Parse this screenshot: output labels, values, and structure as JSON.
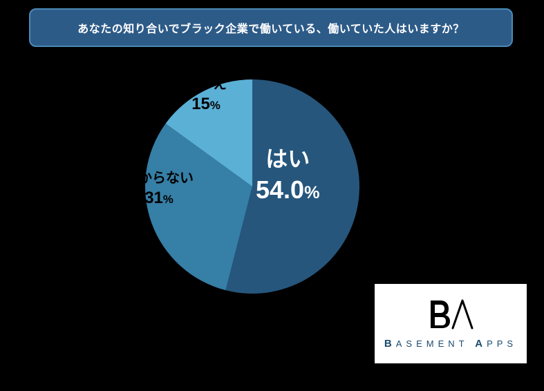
{
  "title": "あなたの知り合いでブラック企業で働いている、働いていた人はいますか？",
  "title_box": {
    "background": "#2d5b88",
    "border_color": "#4a8ab8",
    "text_color": "#ffffff",
    "fontsize": 16
  },
  "chart": {
    "type": "pie",
    "start_angle_deg": -90,
    "radius": 155,
    "background": "#000000",
    "slices": [
      {
        "label": "はい",
        "value": 54.0,
        "pct_display": "54.0",
        "color": "#26567c",
        "label_color": "#ffffff",
        "name_fontsize": 32,
        "pct_fontsize": 36
      },
      {
        "label": "わからない",
        "value": 31.0,
        "pct_display": "31",
        "color": "#367fa6",
        "label_color": "#000000",
        "name_fontsize": 20,
        "pct_fontsize": 24
      },
      {
        "label": "いいえ",
        "value": 15.0,
        "pct_display": "15",
        "color": "#5bb0d6",
        "label_color": "#000000",
        "name_fontsize": 20,
        "pct_fontsize": 24
      }
    ]
  },
  "logo": {
    "brand_first": "B",
    "brand_rest1": "ASEMENT",
    "brand_first2": "A",
    "brand_rest2": "PPS",
    "text_color": "#1a4a6e",
    "background": "#ffffff",
    "icon_stroke": "#000000"
  }
}
